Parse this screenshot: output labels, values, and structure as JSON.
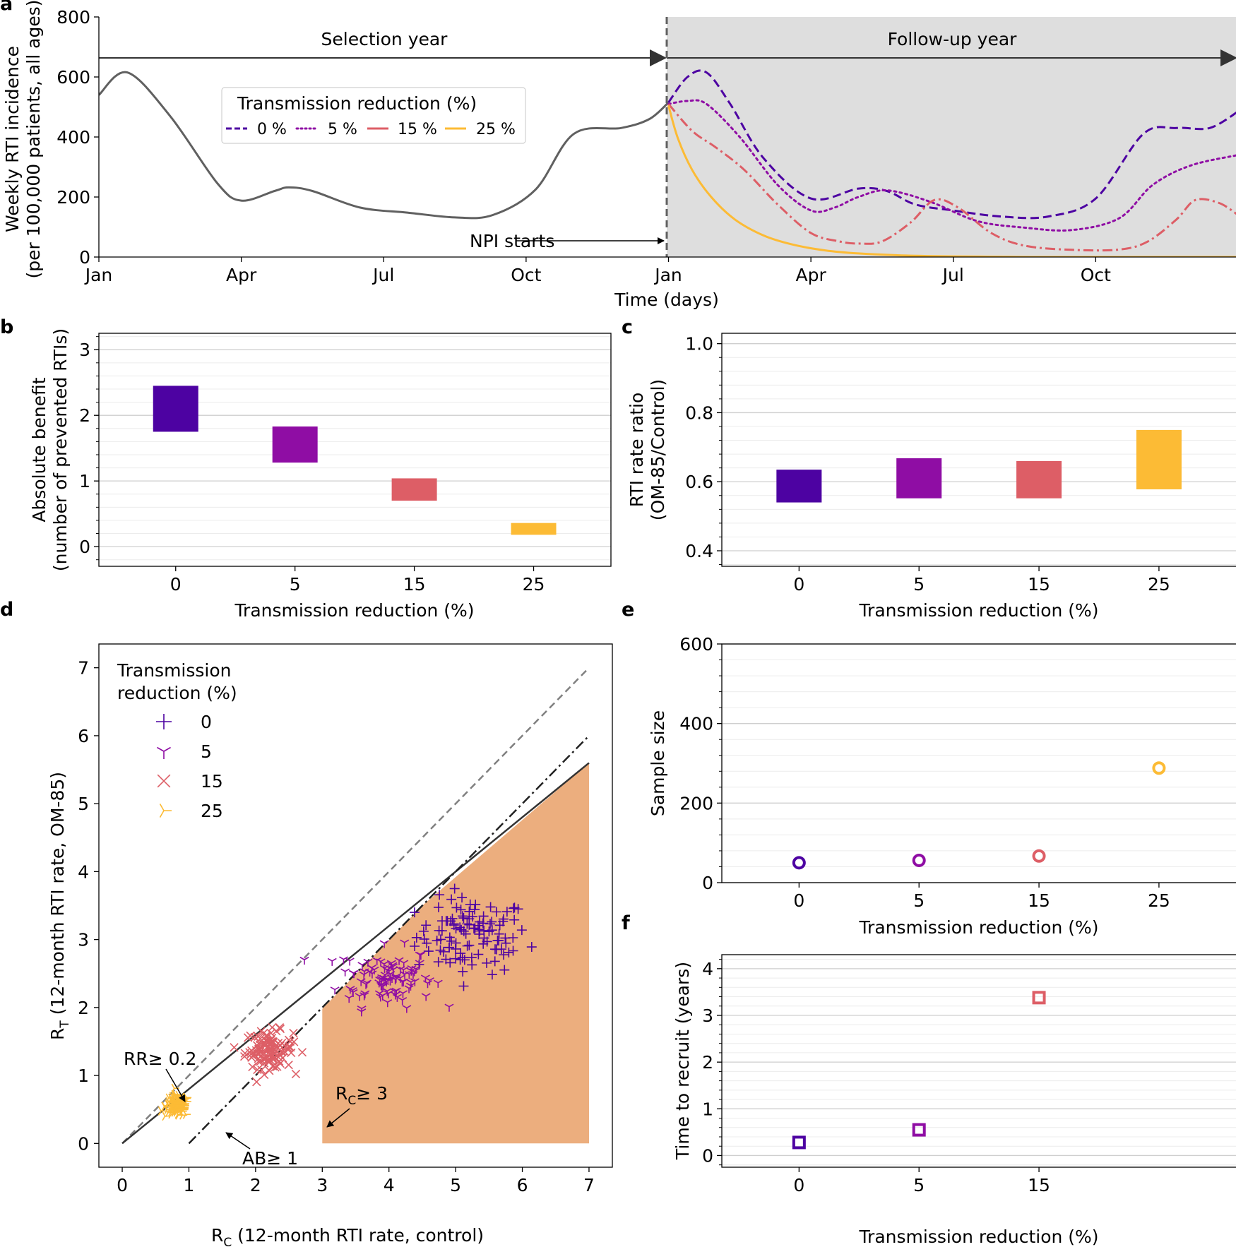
{
  "figure_title": "",
  "colors": {
    "tr0": "#4d02a2",
    "tr5": "#8f0da4",
    "tr15": "#dd5e66",
    "tr25": "#fcbb35",
    "selection": "#606060",
    "followup_bg": "#dedede",
    "feasible": "#ecae7e"
  },
  "chart_data": [
    {
      "panel": "a",
      "type": "line",
      "xlabel": "Time (days)",
      "ylabel_line1": "Weekly RTI incidence",
      "ylabel_line2": "(per 100,000 patients, all ages)",
      "ylim": [
        0,
        800
      ],
      "yticks": [
        0,
        200,
        400,
        600,
        800
      ],
      "x_unit": "month index (0 = Jan of selection year)",
      "xlim": [
        0,
        24
      ],
      "xtick_pos": [
        0,
        3,
        6,
        9,
        12,
        15,
        18,
        21
      ],
      "xtick_labels": [
        "Jan",
        "Apr",
        "Jul",
        "Oct",
        "Jan",
        "Apr",
        "Jul",
        "Oct"
      ],
      "selection_label": "Selection year",
      "followup_label": "Follow-up year",
      "npi_label": "NPI starts",
      "npi_x": 12,
      "legend_title": "Transmission reduction (%)",
      "legend_labels": [
        "0 %",
        "5 %",
        "15 %",
        "25 %"
      ],
      "selection_series": {
        "x": [
          0,
          0.6,
          1.5,
          2.5,
          3.0,
          3.7,
          4.0,
          4.5,
          5.5,
          6.5,
          7.5,
          8.3,
          9.2,
          10.0,
          11.0,
          11.6,
          12.0
        ],
        "y": [
          540,
          615,
          470,
          245,
          188,
          220,
          232,
          220,
          165,
          148,
          132,
          140,
          225,
          410,
          430,
          460,
          515
        ]
      },
      "series": [
        {
          "name": "0 %",
          "style": "dashed",
          "x": [
            12,
            12.4,
            12.8,
            13.3,
            14,
            15,
            16,
            16.6,
            17.2,
            18,
            19,
            20,
            21,
            22,
            22.7,
            23.4,
            24
          ],
          "y": [
            515,
            600,
            615,
            510,
            330,
            195,
            228,
            220,
            175,
            155,
            135,
            135,
            195,
            410,
            430,
            430,
            485
          ]
        },
        {
          "name": "5 %",
          "style": "dotted",
          "x": [
            12,
            12.4,
            12.8,
            13.5,
            14.3,
            15,
            15.5,
            16,
            16.6,
            17.5,
            18.5,
            19.5,
            20.5,
            21.5,
            22.2,
            23,
            24
          ],
          "y": [
            510,
            520,
            510,
            400,
            240,
            155,
            165,
            200,
            222,
            185,
            120,
            98,
            90,
            130,
            240,
            305,
            340
          ]
        },
        {
          "name": "15 %",
          "style": "dashdot",
          "x": [
            12,
            12.5,
            13,
            13.6,
            14.3,
            15,
            15.6,
            16,
            16.5,
            17.1,
            17.6,
            18.1,
            18.8,
            19.5,
            20.5,
            21.5,
            22.1,
            22.7,
            23.1,
            23.6,
            24
          ],
          "y": [
            510,
            420,
            365,
            290,
            175,
            80,
            52,
            45,
            52,
            115,
            190,
            165,
            80,
            38,
            24,
            25,
            52,
            125,
            190,
            180,
            140
          ]
        },
        {
          "name": "25 %",
          "style": "solid",
          "x": [
            12,
            12.2,
            12.5,
            12.9,
            13.4,
            14,
            14.6,
            15.3,
            16,
            17,
            18,
            19,
            20,
            24
          ],
          "y": [
            505,
            395,
            290,
            200,
            125,
            72,
            42,
            22,
            12,
            5,
            2,
            1,
            0,
            0
          ]
        }
      ]
    },
    {
      "panel": "b",
      "type": "bar",
      "xlabel": "Transmission reduction (%)",
      "ylabel_line1": "Absolute benefit",
      "ylabel_line2": "(number of prevented RTIs)",
      "categories": [
        "0",
        "5",
        "15",
        "25"
      ],
      "ranges": [
        [
          1.75,
          2.45
        ],
        [
          1.28,
          1.83
        ],
        [
          0.7,
          1.04
        ],
        [
          0.18,
          0.36
        ]
      ],
      "ylim": [
        -0.3,
        3.25
      ],
      "yticks": [
        0,
        1,
        2,
        3
      ]
    },
    {
      "panel": "c",
      "type": "bar",
      "xlabel": "Transmission reduction (%)",
      "ylabel_line1": "RTI rate ratio",
      "ylabel_line2": "(OM-85/Control)",
      "categories": [
        "0",
        "5",
        "15",
        "25"
      ],
      "ranges": [
        [
          0.54,
          0.635
        ],
        [
          0.552,
          0.668
        ],
        [
          0.552,
          0.66
        ],
        [
          0.578,
          0.75
        ]
      ],
      "ylim": [
        0.355,
        1.03
      ],
      "yticks": [
        0.4,
        0.6,
        0.8,
        1.0
      ],
      "ytick_labels": [
        "0.4",
        "0.6",
        "0.8",
        "1.0"
      ]
    },
    {
      "panel": "d",
      "type": "scatter",
      "xlabel_sym": "R",
      "xlabel_sub": "C",
      "xlabel_rest": " (12-month RTI rate, control)",
      "ylabel_sym": "R",
      "ylabel_sub": "T",
      "ylabel_rest": " (12-month RTI rate, OM-85)",
      "xlim": [
        -0.35,
        7.35
      ],
      "ylim": [
        -0.35,
        7.35
      ],
      "xticks": [
        0,
        1,
        2,
        3,
        4,
        5,
        6,
        7
      ],
      "yticks": [
        0,
        1,
        2,
        3,
        4,
        5,
        6,
        7
      ],
      "legend_title_line1": "Transmission",
      "legend_title_line2": "reduction (%)",
      "legend_labels": [
        "0",
        "5",
        "15",
        "25"
      ],
      "lines": {
        "identity": {
          "x": [
            0,
            7
          ],
          "y": [
            0,
            7
          ]
        },
        "rr_line": {
          "x": [
            0,
            7
          ],
          "y": [
            0,
            5.6
          ]
        },
        "ab_line": {
          "x": [
            1,
            7
          ],
          "y": [
            0,
            6
          ]
        }
      },
      "feasible_region": {
        "x": [
          3,
          3,
          4.5,
          7,
          7
        ],
        "y": [
          0,
          1.98,
          3.5,
          5.6,
          0
        ]
      },
      "annotation_rr": "RR≥ 0.2",
      "annotation_rc_sym": "R",
      "annotation_rc_sub": "C",
      "annotation_rc_rest": "≥ 3",
      "annotation_ab": "AB≥ 1",
      "clusters": [
        {
          "name": "0",
          "marker": "plus",
          "center": [
            5.25,
            3.05
          ],
          "spread": [
            0.42,
            0.28
          ],
          "n": 110
        },
        {
          "name": "5",
          "marker": "tri_down",
          "center": [
            3.95,
            2.45
          ],
          "spread": [
            0.35,
            0.22
          ],
          "n": 100
        },
        {
          "name": "15",
          "marker": "x",
          "center": [
            2.2,
            1.38
          ],
          "spread": [
            0.18,
            0.14
          ],
          "n": 110
        },
        {
          "name": "25",
          "marker": "tri_right",
          "center": [
            0.82,
            0.55
          ],
          "spread": [
            0.09,
            0.08
          ],
          "n": 110
        }
      ]
    },
    {
      "panel": "e",
      "type": "scatter",
      "xlabel": "Transmission reduction (%)",
      "ylabel": "Sample size",
      "categories": [
        "0",
        "5",
        "15",
        "25"
      ],
      "values": [
        50,
        56,
        67,
        288
      ],
      "ylim": [
        0,
        600
      ],
      "yticks": [
        0,
        200,
        400,
        600
      ]
    },
    {
      "panel": "f",
      "type": "scatter",
      "xlabel": "Transmission reduction (%)",
      "ylabel": "Time to recruit (years)",
      "categories": [
        "0",
        "5",
        "15"
      ],
      "values": [
        0.28,
        0.55,
        3.38
      ],
      "ylim": [
        -0.25,
        4.3
      ],
      "yticks": [
        0,
        1,
        2,
        3,
        4
      ]
    }
  ]
}
